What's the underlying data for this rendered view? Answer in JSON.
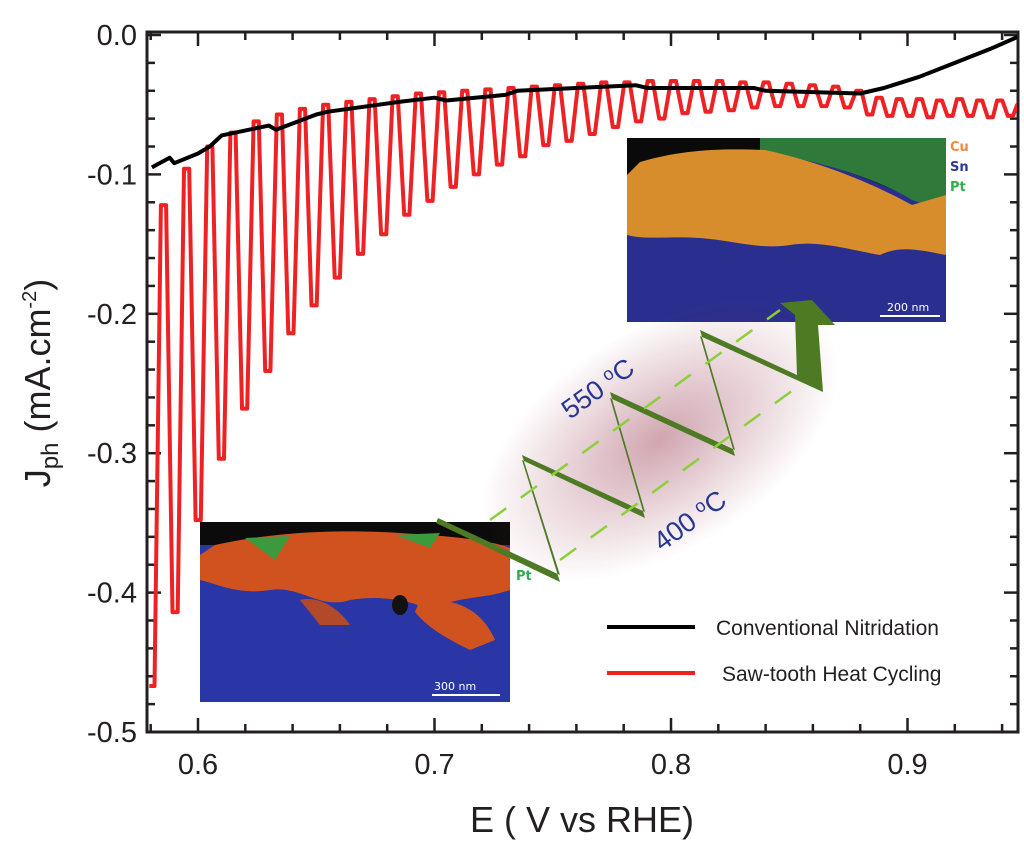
{
  "chart_data": {
    "type": "line",
    "xlabel": "E ( V vs RHE)",
    "ylabel": {
      "main": "J",
      "sub": "ph",
      "unit": " (mA.cm",
      "sup": "-2",
      "close": ")"
    },
    "xlim": [
      0.578,
      0.947
    ],
    "ylim": [
      -0.5,
      0.003
    ],
    "x_ticks": [
      "0.6",
      "0.7",
      "0.8",
      "0.9"
    ],
    "y_ticks": [
      "0.0",
      "-0.1",
      "-0.2",
      "-0.3",
      "-0.4",
      "-0.5"
    ],
    "grid": false,
    "legend_position": "bottom-right",
    "series": [
      {
        "name": "Conventional Nitridation",
        "color": "#000000",
        "points": [
          [
            0.5805,
            -0.095
          ],
          [
            0.588,
            -0.088
          ],
          [
            0.59,
            -0.092
          ],
          [
            0.6,
            -0.085
          ],
          [
            0.605,
            -0.08
          ],
          [
            0.61,
            -0.072
          ],
          [
            0.63,
            -0.065
          ],
          [
            0.633,
            -0.068
          ],
          [
            0.65,
            -0.057
          ],
          [
            0.655,
            -0.055
          ],
          [
            0.685,
            -0.048
          ],
          [
            0.7,
            -0.045
          ],
          [
            0.705,
            -0.047
          ],
          [
            0.73,
            -0.043
          ],
          [
            0.735,
            -0.04
          ],
          [
            0.76,
            -0.038
          ],
          [
            0.785,
            -0.036
          ],
          [
            0.79,
            -0.038
          ],
          [
            0.835,
            -0.038
          ],
          [
            0.84,
            -0.04
          ],
          [
            0.88,
            -0.042
          ],
          [
            0.89,
            -0.038
          ],
          [
            0.905,
            -0.03
          ],
          [
            0.92,
            -0.02
          ],
          [
            0.935,
            -0.01
          ],
          [
            0.947,
            -0.001
          ]
        ]
      },
      {
        "name": "Saw-tooth Heat Cycling",
        "color": "#ee2124",
        "troughs": [
          [
            0.5805,
            -0.467
          ],
          [
            0.5903,
            -0.414
          ],
          [
            0.6001,
            -0.348
          ],
          [
            0.6099,
            -0.304
          ],
          [
            0.6197,
            -0.268
          ],
          [
            0.6295,
            -0.241
          ],
          [
            0.6393,
            -0.214
          ],
          [
            0.6491,
            -0.194
          ],
          [
            0.6589,
            -0.174
          ],
          [
            0.6687,
            -0.157
          ],
          [
            0.6785,
            -0.143
          ],
          [
            0.6883,
            -0.129
          ],
          [
            0.6981,
            -0.119
          ],
          [
            0.7079,
            -0.109
          ],
          [
            0.7177,
            -0.1
          ],
          [
            0.7275,
            -0.093
          ],
          [
            0.7373,
            -0.087
          ],
          [
            0.7471,
            -0.079
          ],
          [
            0.7569,
            -0.076
          ],
          [
            0.7667,
            -0.071
          ],
          [
            0.7765,
            -0.066
          ],
          [
            0.7863,
            -0.062
          ],
          [
            0.7961,
            -0.06
          ],
          [
            0.8059,
            -0.056
          ],
          [
            0.8157,
            -0.055
          ],
          [
            0.8255,
            -0.054
          ],
          [
            0.8353,
            -0.052
          ],
          [
            0.8451,
            -0.051
          ],
          [
            0.8549,
            -0.051
          ],
          [
            0.8647,
            -0.051
          ],
          [
            0.8745,
            -0.052
          ],
          [
            0.884,
            -0.057
          ],
          [
            0.8925,
            -0.058
          ],
          [
            0.901,
            -0.058
          ],
          [
            0.9095,
            -0.059
          ],
          [
            0.918,
            -0.058
          ],
          [
            0.9265,
            -0.058
          ],
          [
            0.935,
            -0.059
          ],
          [
            0.9435,
            -0.058
          ]
        ],
        "peaks": [
          [
            0.5854,
            -0.122
          ],
          [
            0.5952,
            -0.096
          ],
          [
            0.605,
            -0.08
          ],
          [
            0.6148,
            -0.07
          ],
          [
            0.6246,
            -0.062
          ],
          [
            0.6344,
            -0.057
          ],
          [
            0.6442,
            -0.053
          ],
          [
            0.654,
            -0.05
          ],
          [
            0.6638,
            -0.048
          ],
          [
            0.6736,
            -0.046
          ],
          [
            0.6834,
            -0.044
          ],
          [
            0.6932,
            -0.042
          ],
          [
            0.703,
            -0.041
          ],
          [
            0.7128,
            -0.04
          ],
          [
            0.7226,
            -0.039
          ],
          [
            0.7324,
            -0.038
          ],
          [
            0.7422,
            -0.037
          ],
          [
            0.752,
            -0.036
          ],
          [
            0.7618,
            -0.035
          ],
          [
            0.7716,
            -0.034
          ],
          [
            0.7814,
            -0.034
          ],
          [
            0.7912,
            -0.033
          ],
          [
            0.801,
            -0.033
          ],
          [
            0.8108,
            -0.033
          ],
          [
            0.8206,
            -0.033
          ],
          [
            0.8304,
            -0.034
          ],
          [
            0.8402,
            -0.034
          ],
          [
            0.85,
            -0.035
          ],
          [
            0.8598,
            -0.036
          ],
          [
            0.8696,
            -0.037
          ],
          [
            0.8794,
            -0.04
          ],
          [
            0.888,
            -0.045
          ],
          [
            0.8965,
            -0.046
          ],
          [
            0.905,
            -0.046
          ],
          [
            0.9135,
            -0.047
          ],
          [
            0.922,
            -0.046
          ],
          [
            0.9305,
            -0.047
          ],
          [
            0.939,
            -0.047
          ],
          [
            0.9475,
            -0.05
          ]
        ]
      }
    ],
    "annotations": {
      "temp_high": {
        "value": "550 ",
        "sup": "o",
        "unit": "C"
      },
      "temp_low": {
        "value": "400 ",
        "sup": "o",
        "unit": "C"
      },
      "arrow_color": "#4e7a23",
      "inset_top": {
        "labels": [
          "Cu",
          "Sn",
          "Pt"
        ],
        "label_colors": [
          "#f08a3c",
          "#2b3a9a",
          "#2fae4a"
        ],
        "scale_bar": "200 nm"
      },
      "inset_bottom": {
        "scale_bar": "300 nm",
        "partial_label": "Pt"
      }
    }
  }
}
